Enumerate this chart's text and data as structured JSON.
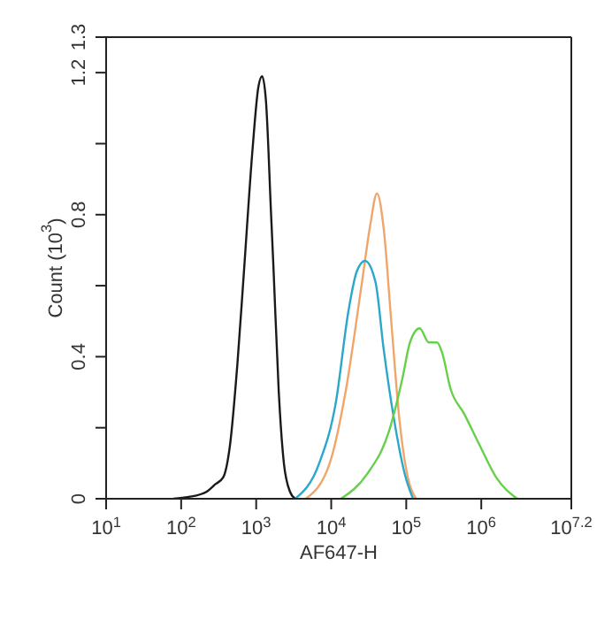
{
  "chart_data": {
    "type": "line",
    "xlabel": "AF647-H",
    "ylabel": "Count (10$^{3}$)",
    "log": "x",
    "xlim": [
      10,
      15848932
    ],
    "xticks": [
      {
        "value": 10,
        "label": "10$^{1}$"
      },
      {
        "value": 100,
        "label": "10$^{2}$"
      },
      {
        "value": 1000,
        "label": "10$^{3}$"
      },
      {
        "value": 10000,
        "label": "10$^{4}$"
      },
      {
        "value": 100000,
        "label": "10$^{5}$"
      },
      {
        "value": 1000000,
        "label": "10$^{6}$"
      },
      {
        "value": 15848932,
        "label": "10$^{7.2}$"
      }
    ],
    "ylim": [
      0,
      1.3
    ],
    "yticks": [
      0,
      {
        "value": 0.2,
        "label": null
      },
      0.4,
      {
        "value": 0.6,
        "label": null
      },
      0.8,
      {
        "value": 1.0,
        "label": null
      },
      1.2,
      1.3
    ],
    "legend": false,
    "marker": "none",
    "line_style": "solid",
    "series": [
      {
        "color": "#1a1a1a",
        "x": [
          79,
          126,
          219,
          282,
          363,
          447,
          562,
          692,
          891,
          1070,
          1200,
          1350,
          1580,
          1700,
          2000,
          2340,
          2820,
          3310
        ],
        "values": [
          0,
          0.005,
          0.02,
          0.04,
          0.06,
          0.15,
          0.38,
          0.65,
          0.98,
          1.16,
          1.19,
          1.12,
          0.8,
          0.65,
          0.3,
          0.1,
          0.02,
          0
        ]
      },
      {
        "color": "#f0a56a",
        "x": [
          4570,
          9550,
          15800,
          25700,
          33100,
          40700,
          50100,
          63100,
          81300,
          105000,
          135000
        ],
        "values": [
          0,
          0.1,
          0.31,
          0.61,
          0.77,
          0.86,
          0.76,
          0.5,
          0.22,
          0.06,
          0
        ]
      },
      {
        "color": "#2aa7c9",
        "x": [
          3310,
          6920,
          11500,
          17000,
          21900,
          28200,
          38900,
          50100,
          69200,
          95500,
          123000
        ],
        "values": [
          0,
          0.1,
          0.27,
          0.53,
          0.64,
          0.67,
          0.61,
          0.42,
          0.22,
          0.07,
          0
        ]
      },
      {
        "color": "#66d04a",
        "x": [
          13500,
          30200,
          58900,
          89100,
          112000,
          151000,
          200000,
          257000,
          302000,
          389000,
          589000,
          955000,
          1580000,
          3020000
        ],
        "values": [
          0,
          0.07,
          0.19,
          0.34,
          0.44,
          0.48,
          0.44,
          0.44,
          0.41,
          0.31,
          0.24,
          0.15,
          0.06,
          0
        ]
      }
    ]
  }
}
